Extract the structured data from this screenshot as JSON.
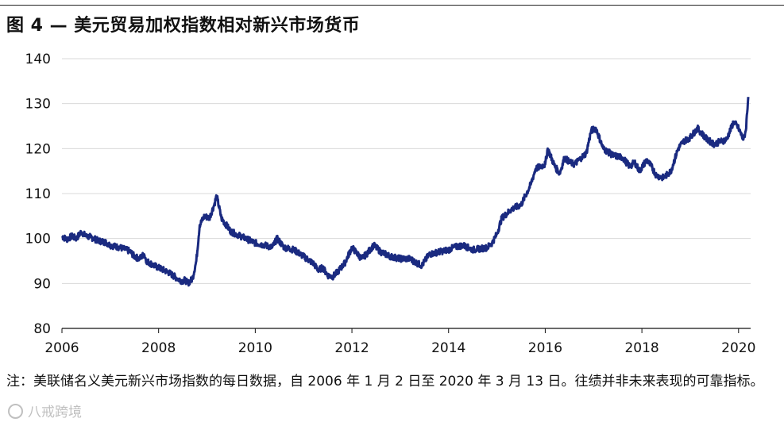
{
  "title": "图 4 — 美元贸易加权指数相对新兴市场货币",
  "note": "注：美联储名义美元新兴市场指数的每日数据，自 2006 年 1 月 2 日至 2020 年 3 月 13 日。往绩并非未来表现的可靠指标。",
  "watermark": "八戒跨境",
  "chart_data": {
    "type": "line",
    "title": "图 4 — 美元贸易加权指数相对新兴市场货币",
    "xlabel": "",
    "ylabel": "",
    "xlim": [
      2006.0,
      2020.25
    ],
    "ylim": [
      80,
      140
    ],
    "yticks": [
      80,
      90,
      100,
      110,
      120,
      130,
      140
    ],
    "xticks": [
      2006,
      2008,
      2010,
      2012,
      2014,
      2016,
      2018,
      2020
    ],
    "xtick_labels": [
      "2006",
      "2008",
      "2010",
      "2012",
      "2014",
      "2016",
      "2018",
      "2020"
    ],
    "ytick_labels": [
      "80",
      "90",
      "100",
      "110",
      "120",
      "130",
      "140"
    ],
    "grid": "horizontal",
    "line_color": "#1a2a80",
    "series": [
      {
        "x": [
          2006.0,
          2006.1,
          2006.2,
          2006.3,
          2006.4,
          2006.5,
          2006.6,
          2006.75,
          2006.9,
          2007.0,
          2007.2,
          2007.4,
          2007.5,
          2007.6,
          2007.7,
          2007.75,
          2007.9,
          2008.0,
          2008.2,
          2008.4,
          2008.5,
          2008.55,
          2008.6,
          2008.7,
          2008.78,
          2008.85,
          2008.95,
          2009.05,
          2009.15,
          2009.2,
          2009.3,
          2009.4,
          2009.5,
          2009.6,
          2009.8,
          2010.0,
          2010.2,
          2010.35,
          2010.45,
          2010.6,
          2010.8,
          2011.0,
          2011.2,
          2011.3,
          2011.4,
          2011.5,
          2011.6,
          2011.7,
          2011.85,
          2012.0,
          2012.2,
          2012.3,
          2012.45,
          2012.6,
          2012.8,
          2013.0,
          2013.2,
          2013.35,
          2013.45,
          2013.6,
          2013.8,
          2014.0,
          2014.1,
          2014.3,
          2014.5,
          2014.7,
          2014.8,
          2014.9,
          2015.0,
          2015.1,
          2015.3,
          2015.5,
          2015.7,
          2015.8,
          2016.0,
          2016.05,
          2016.2,
          2016.3,
          2016.4,
          2016.5,
          2016.6,
          2016.75,
          2016.85,
          2016.95,
          2017.05,
          2017.2,
          2017.4,
          2017.6,
          2017.75,
          2017.85,
          2017.95,
          2018.1,
          2018.2,
          2018.3,
          2018.45,
          2018.6,
          2018.75,
          2018.85,
          2019.0,
          2019.15,
          2019.35,
          2019.5,
          2019.6,
          2019.75,
          2019.9,
          2020.0,
          2020.1,
          2020.15,
          2020.2
        ],
        "y": [
          100.5,
          99.8,
          100.5,
          100.0,
          101.5,
          100.5,
          100.3,
          99.5,
          99.2,
          98.5,
          98.0,
          97.2,
          96.0,
          95.5,
          96.5,
          95.0,
          94.0,
          93.5,
          92.5,
          91.0,
          90.5,
          90.8,
          90.0,
          91.0,
          95.0,
          103.0,
          105.0,
          104.5,
          107.5,
          109.5,
          104.5,
          103.0,
          101.5,
          101.0,
          100.0,
          99.0,
          98.5,
          98.0,
          100.0,
          98.0,
          97.5,
          96.0,
          94.5,
          93.0,
          93.5,
          91.8,
          91.5,
          92.5,
          94.5,
          98.0,
          95.5,
          96.5,
          98.5,
          97.0,
          96.0,
          95.5,
          95.5,
          94.5,
          94.0,
          96.5,
          97.0,
          97.5,
          98.0,
          98.5,
          97.5,
          97.8,
          98.0,
          99.0,
          101.0,
          104.5,
          106.5,
          107.5,
          112.0,
          115.5,
          116.5,
          120.0,
          116.0,
          114.5,
          118.0,
          117.0,
          116.5,
          118.0,
          119.0,
          124.0,
          124.5,
          120.0,
          118.5,
          118.0,
          116.0,
          117.0,
          115.0,
          117.5,
          116.0,
          114.0,
          113.5,
          115.0,
          120.0,
          121.5,
          122.5,
          124.5,
          122.0,
          121.0,
          121.5,
          122.0,
          126.0,
          124.5,
          122.0,
          124.0,
          131.5
        ]
      }
    ]
  }
}
